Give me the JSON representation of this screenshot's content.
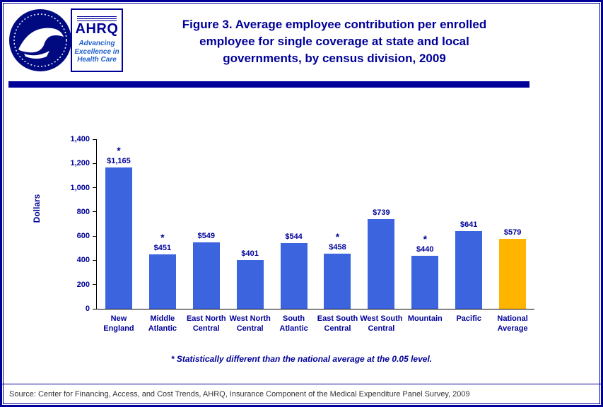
{
  "header": {
    "title_lines": [
      "Figure 3. Average employee contribution per enrolled",
      "employee for single coverage at state and local",
      "governments, by census division, 2009"
    ],
    "logo": {
      "ahrq_text": "AHRQ",
      "tagline_lines": [
        "Advancing",
        "Excellence in",
        "Health Care"
      ]
    }
  },
  "chart_data": {
    "type": "bar",
    "title": "Figure 3. Average employee contribution per enrolled employee for single coverage at state and local governments, by census division, 2009",
    "ylabel": "Dollars",
    "ylim": [
      0,
      1400
    ],
    "yticks": [
      0,
      200,
      400,
      600,
      800,
      1000,
      1200,
      1400
    ],
    "ytick_labels": [
      "0",
      "200",
      "400",
      "600",
      "800",
      "1,000",
      "1,200",
      "1,400"
    ],
    "categories": [
      "New England",
      "Middle Atlantic",
      "East North Central",
      "West North Central",
      "South Atlantic",
      "East South Central",
      "West South Central",
      "Mountain",
      "Pacific",
      "National Average"
    ],
    "category_labels": [
      "New\nEngland",
      "Middle\nAtlantic",
      "East North\nCentral",
      "West North\nCentral",
      "South\nAtlantic",
      "East South\nCentral",
      "West South\nCentral",
      "Mountain",
      "Pacific",
      "National\nAverage"
    ],
    "values": [
      1165,
      451,
      549,
      401,
      544,
      458,
      739,
      440,
      641,
      579
    ],
    "value_labels": [
      "$1,165",
      "$451",
      "$549",
      "$401",
      "$544",
      "$458",
      "$739",
      "$440",
      "$641",
      "$579"
    ],
    "statistically_different": [
      true,
      true,
      false,
      false,
      false,
      true,
      false,
      true,
      false,
      false
    ],
    "grid": false,
    "legend": "none",
    "colors": {
      "bar_default": "#3b64de",
      "bar_national_average": "#ffb400",
      "accent_navy": "#000099"
    }
  },
  "footnote": "* Statistically different than the national average at the 0.05 level.",
  "source": "Source: Center for Financing, Access, and Cost Trends, AHRQ, Insurance Component of the Medical Expenditure Panel Survey, 2009"
}
